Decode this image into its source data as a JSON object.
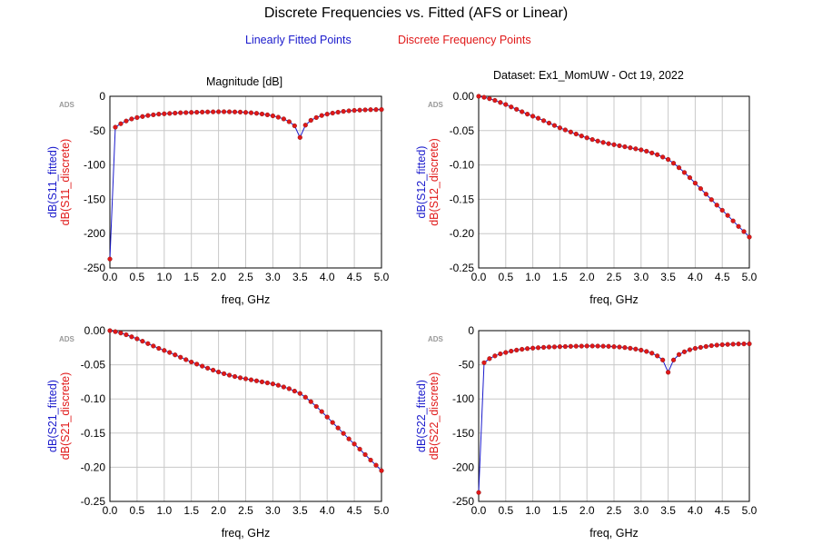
{
  "title": "Discrete Frequencies vs. Fitted (AFS or Linear)",
  "legend": {
    "fitted": "Linearly Fitted Points",
    "discrete": "Discrete Frequency Points"
  },
  "subtitles": {
    "magnitude": "Magnitude [dB]",
    "dataset": "Dataset: Ex1_MomUW - Oct 19, 2022"
  },
  "colors": {
    "fitted_line": "#1a1acc",
    "discrete_marker": "#e01818",
    "grid": "#c8c8c8",
    "axes": "#000000"
  },
  "chart_data": [
    {
      "type": "line",
      "id": "s11",
      "watermark": "ADS",
      "xlabel": "freq, GHz",
      "ylabel_fitted": "dB(S11_fitted)",
      "ylabel_discrete": "dB(S11_discrete)",
      "xlim": [
        0,
        5
      ],
      "ylim": [
        -250,
        0
      ],
      "xticks": [
        "0.0",
        "0.5",
        "1.0",
        "1.5",
        "2.0",
        "2.5",
        "3.0",
        "3.5",
        "4.0",
        "4.5",
        "5.0"
      ],
      "yticks": [
        "0",
        "-50",
        "-100",
        "-150",
        "-200",
        "-250"
      ],
      "grid": true,
      "x": [
        0,
        0.1,
        0.2,
        0.3,
        0.4,
        0.5,
        0.6,
        0.7,
        0.8,
        0.9,
        1.0,
        1.1,
        1.2,
        1.3,
        1.4,
        1.5,
        1.6,
        1.7,
        1.8,
        1.9,
        2.0,
        2.1,
        2.2,
        2.3,
        2.4,
        2.5,
        2.6,
        2.7,
        2.8,
        2.9,
        3.0,
        3.1,
        3.2,
        3.3,
        3.4,
        3.5,
        3.6,
        3.7,
        3.8,
        3.9,
        4.0,
        4.1,
        4.2,
        4.3,
        4.4,
        4.5,
        4.6,
        4.7,
        4.8,
        4.9,
        5.0
      ],
      "series": [
        {
          "name": "dB(S11_fitted)",
          "values": [
            -237,
            -45,
            -40,
            -36,
            -33,
            -31,
            -29.5,
            -28,
            -27,
            -26,
            -25.5,
            -25,
            -24.5,
            -24,
            -23.8,
            -23.5,
            -23.3,
            -23,
            -22.8,
            -22.7,
            -22.5,
            -22.5,
            -22.6,
            -22.8,
            -23,
            -23.5,
            -24,
            -24.8,
            -25.8,
            -27,
            -28.5,
            -30.5,
            -33,
            -37,
            -43,
            -60,
            -42,
            -35,
            -31,
            -28,
            -26,
            -24.5,
            -23.2,
            -22,
            -21.2,
            -20.6,
            -20.2,
            -19.8,
            -19.5,
            -19.4,
            -19.3
          ]
        },
        {
          "name": "dB(S11_discrete)",
          "values": [
            -237,
            -45,
            -40,
            -36,
            -33,
            -31,
            -29.5,
            -28,
            -27,
            -26,
            -25.5,
            -25,
            -24.5,
            -24,
            -23.8,
            -23.5,
            -23.3,
            -23,
            -22.8,
            -22.7,
            -22.5,
            -22.5,
            -22.6,
            -22.8,
            -23,
            -23.5,
            -24,
            -24.8,
            -25.8,
            -27,
            -28.5,
            -30.5,
            -33,
            -37,
            -43,
            -60,
            -42,
            -35,
            -31,
            -28,
            -26,
            -24.5,
            -23.2,
            -22,
            -21.2,
            -20.6,
            -20.2,
            -19.8,
            -19.5,
            -19.4,
            -19.3
          ]
        }
      ]
    },
    {
      "type": "line",
      "id": "s12",
      "watermark": "ADS",
      "xlabel": "freq, GHz",
      "ylabel_fitted": "dB(S12_fitted)",
      "ylabel_discrete": "dB(S12_discrete)",
      "xlim": [
        0,
        5
      ],
      "ylim": [
        -0.25,
        0
      ],
      "xticks": [
        "0.0",
        "0.5",
        "1.0",
        "1.5",
        "2.0",
        "2.5",
        "3.0",
        "3.5",
        "4.0",
        "4.5",
        "5.0"
      ],
      "yticks": [
        "0.00",
        "-0.05",
        "-0.10",
        "-0.15",
        "-0.20",
        "-0.25"
      ],
      "grid": true,
      "x": [
        0,
        0.1,
        0.2,
        0.3,
        0.4,
        0.5,
        0.6,
        0.7,
        0.8,
        0.9,
        1.0,
        1.1,
        1.2,
        1.3,
        1.4,
        1.5,
        1.6,
        1.7,
        1.8,
        1.9,
        2.0,
        2.1,
        2.2,
        2.3,
        2.4,
        2.5,
        2.6,
        2.7,
        2.8,
        2.9,
        3.0,
        3.1,
        3.2,
        3.3,
        3.4,
        3.5,
        3.6,
        3.7,
        3.8,
        3.9,
        4.0,
        4.1,
        4.2,
        4.3,
        4.4,
        4.5,
        4.6,
        4.7,
        4.8,
        4.9,
        5.0
      ],
      "series": [
        {
          "name": "dB(S12_fitted)",
          "values": [
            0,
            -0.0015,
            -0.0035,
            -0.006,
            -0.009,
            -0.012,
            -0.0155,
            -0.019,
            -0.0225,
            -0.026,
            -0.029,
            -0.032,
            -0.0355,
            -0.039,
            -0.0425,
            -0.046,
            -0.049,
            -0.052,
            -0.055,
            -0.0578,
            -0.0605,
            -0.063,
            -0.0652,
            -0.0672,
            -0.069,
            -0.0705,
            -0.072,
            -0.0735,
            -0.075,
            -0.0765,
            -0.078,
            -0.08,
            -0.0825,
            -0.085,
            -0.0885,
            -0.092,
            -0.0975,
            -0.104,
            -0.111,
            -0.1185,
            -0.1265,
            -0.1345,
            -0.1425,
            -0.1505,
            -0.1585,
            -0.166,
            -0.1735,
            -0.1815,
            -0.1895,
            -0.197,
            -0.205
          ]
        },
        {
          "name": "dB(S12_discrete)",
          "values": [
            0,
            -0.0015,
            -0.0035,
            -0.006,
            -0.009,
            -0.012,
            -0.0155,
            -0.019,
            -0.0225,
            -0.026,
            -0.029,
            -0.032,
            -0.0355,
            -0.039,
            -0.0425,
            -0.046,
            -0.049,
            -0.052,
            -0.055,
            -0.0578,
            -0.0605,
            -0.063,
            -0.0652,
            -0.0672,
            -0.069,
            -0.0705,
            -0.072,
            -0.0735,
            -0.075,
            -0.0765,
            -0.078,
            -0.08,
            -0.0825,
            -0.085,
            -0.0885,
            -0.092,
            -0.0975,
            -0.104,
            -0.111,
            -0.1185,
            -0.1265,
            -0.1345,
            -0.1425,
            -0.1505,
            -0.1585,
            -0.166,
            -0.1735,
            -0.1815,
            -0.1895,
            -0.197,
            -0.205
          ]
        }
      ]
    },
    {
      "type": "line",
      "id": "s21",
      "watermark": "ADS",
      "xlabel": "freq, GHz",
      "ylabel_fitted": "dB(S21_fitted)",
      "ylabel_discrete": "dB(S21_discrete)",
      "xlim": [
        0,
        5
      ],
      "ylim": [
        -0.25,
        0
      ],
      "xticks": [
        "0.0",
        "0.5",
        "1.0",
        "1.5",
        "2.0",
        "2.5",
        "3.0",
        "3.5",
        "4.0",
        "4.5",
        "5.0"
      ],
      "yticks": [
        "0.00",
        "-0.05",
        "-0.10",
        "-0.15",
        "-0.20",
        "-0.25"
      ],
      "grid": true,
      "x": [
        0,
        0.1,
        0.2,
        0.3,
        0.4,
        0.5,
        0.6,
        0.7,
        0.8,
        0.9,
        1.0,
        1.1,
        1.2,
        1.3,
        1.4,
        1.5,
        1.6,
        1.7,
        1.8,
        1.9,
        2.0,
        2.1,
        2.2,
        2.3,
        2.4,
        2.5,
        2.6,
        2.7,
        2.8,
        2.9,
        3.0,
        3.1,
        3.2,
        3.3,
        3.4,
        3.5,
        3.6,
        3.7,
        3.8,
        3.9,
        4.0,
        4.1,
        4.2,
        4.3,
        4.4,
        4.5,
        4.6,
        4.7,
        4.8,
        4.9,
        5.0
      ],
      "series": [
        {
          "name": "dB(S21_fitted)",
          "values": [
            0,
            -0.0015,
            -0.0035,
            -0.006,
            -0.009,
            -0.012,
            -0.0155,
            -0.019,
            -0.0225,
            -0.026,
            -0.029,
            -0.032,
            -0.0355,
            -0.039,
            -0.0425,
            -0.046,
            -0.049,
            -0.052,
            -0.055,
            -0.0578,
            -0.0605,
            -0.063,
            -0.0652,
            -0.0672,
            -0.069,
            -0.0705,
            -0.072,
            -0.0735,
            -0.075,
            -0.0765,
            -0.078,
            -0.08,
            -0.0825,
            -0.085,
            -0.0885,
            -0.092,
            -0.0975,
            -0.104,
            -0.111,
            -0.1185,
            -0.1265,
            -0.1345,
            -0.1425,
            -0.1505,
            -0.1585,
            -0.166,
            -0.1735,
            -0.1815,
            -0.1895,
            -0.197,
            -0.205
          ]
        },
        {
          "name": "dB(S21_discrete)",
          "values": [
            0,
            -0.0015,
            -0.0035,
            -0.006,
            -0.009,
            -0.012,
            -0.0155,
            -0.019,
            -0.0225,
            -0.026,
            -0.029,
            -0.032,
            -0.0355,
            -0.039,
            -0.0425,
            -0.046,
            -0.049,
            -0.052,
            -0.055,
            -0.0578,
            -0.0605,
            -0.063,
            -0.0652,
            -0.0672,
            -0.069,
            -0.0705,
            -0.072,
            -0.0735,
            -0.075,
            -0.0765,
            -0.078,
            -0.08,
            -0.0825,
            -0.085,
            -0.0885,
            -0.092,
            -0.0975,
            -0.104,
            -0.111,
            -0.1185,
            -0.1265,
            -0.1345,
            -0.1425,
            -0.1505,
            -0.1585,
            -0.166,
            -0.1735,
            -0.1815,
            -0.1895,
            -0.197,
            -0.205
          ]
        }
      ]
    },
    {
      "type": "line",
      "id": "s22",
      "watermark": "ADS",
      "xlabel": "freq, GHz",
      "ylabel_fitted": "dB(S22_fitted)",
      "ylabel_discrete": "dB(S22_discrete)",
      "xlim": [
        0,
        5
      ],
      "ylim": [
        -250,
        0
      ],
      "xticks": [
        "0.0",
        "0.5",
        "1.0",
        "1.5",
        "2.0",
        "2.5",
        "3.0",
        "3.5",
        "4.0",
        "4.5",
        "5.0"
      ],
      "yticks": [
        "0",
        "-50",
        "-100",
        "-150",
        "-200",
        "-250"
      ],
      "grid": true,
      "x": [
        0,
        0.1,
        0.2,
        0.3,
        0.4,
        0.5,
        0.6,
        0.7,
        0.8,
        0.9,
        1.0,
        1.1,
        1.2,
        1.3,
        1.4,
        1.5,
        1.6,
        1.7,
        1.8,
        1.9,
        2.0,
        2.1,
        2.2,
        2.3,
        2.4,
        2.5,
        2.6,
        2.7,
        2.8,
        2.9,
        3.0,
        3.1,
        3.2,
        3.3,
        3.4,
        3.5,
        3.6,
        3.7,
        3.8,
        3.9,
        4.0,
        4.1,
        4.2,
        4.3,
        4.4,
        4.5,
        4.6,
        4.7,
        4.8,
        4.9,
        5.0
      ],
      "series": [
        {
          "name": "dB(S22_fitted)",
          "values": [
            -237,
            -47,
            -41,
            -37,
            -34,
            -32,
            -30,
            -28.5,
            -27.3,
            -26.3,
            -25.6,
            -25,
            -24.5,
            -24,
            -23.8,
            -23.5,
            -23.3,
            -23,
            -22.8,
            -22.7,
            -22.5,
            -22.5,
            -22.6,
            -22.8,
            -23,
            -23.5,
            -24,
            -24.8,
            -25.8,
            -27,
            -28.5,
            -30.5,
            -33,
            -37,
            -43,
            -61,
            -43,
            -35,
            -31,
            -28,
            -26,
            -24.5,
            -23.2,
            -22,
            -21.2,
            -20.6,
            -20.2,
            -19.8,
            -19.5,
            -19.4,
            -19.3
          ]
        },
        {
          "name": "dB(S22_discrete)",
          "values": [
            -237,
            -47,
            -41,
            -37,
            -34,
            -32,
            -30,
            -28.5,
            -27.3,
            -26.3,
            -25.6,
            -25,
            -24.5,
            -24,
            -23.8,
            -23.5,
            -23.3,
            -23,
            -22.8,
            -22.7,
            -22.5,
            -22.5,
            -22.6,
            -22.8,
            -23,
            -23.5,
            -24,
            -24.8,
            -25.8,
            -27,
            -28.5,
            -30.5,
            -33,
            -37,
            -43,
            -61,
            -43,
            -35,
            -31,
            -28,
            -26,
            -24.5,
            -23.2,
            -22,
            -21.2,
            -20.6,
            -20.2,
            -19.8,
            -19.5,
            -19.4,
            -19.3
          ]
        }
      ]
    }
  ]
}
